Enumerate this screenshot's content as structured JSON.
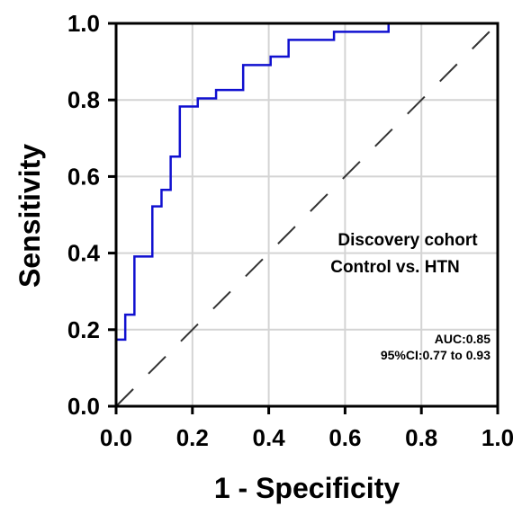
{
  "chart_data": {
    "type": "line",
    "title": "",
    "xlabel": "1 - Specificity",
    "ylabel": "Sensitivity",
    "xlim": [
      0,
      1
    ],
    "ylim": [
      0,
      1
    ],
    "x_ticks": [
      "0.0",
      "0.2",
      "0.4",
      "0.6",
      "0.8",
      "1.0"
    ],
    "y_ticks": [
      "0.0",
      "0.2",
      "0.4",
      "0.6",
      "0.8",
      "1.0"
    ],
    "grid": true,
    "series": [
      {
        "color": "#1010d0",
        "points": [
          [
            0.0,
            0.0
          ],
          [
            0.0,
            0.174
          ],
          [
            0.024,
            0.174
          ],
          [
            0.024,
            0.239
          ],
          [
            0.048,
            0.239
          ],
          [
            0.048,
            0.391
          ],
          [
            0.095,
            0.391
          ],
          [
            0.095,
            0.522
          ],
          [
            0.119,
            0.522
          ],
          [
            0.119,
            0.565
          ],
          [
            0.143,
            0.565
          ],
          [
            0.143,
            0.652
          ],
          [
            0.167,
            0.652
          ],
          [
            0.167,
            0.783
          ],
          [
            0.214,
            0.783
          ],
          [
            0.214,
            0.804
          ],
          [
            0.262,
            0.804
          ],
          [
            0.262,
            0.826
          ],
          [
            0.333,
            0.826
          ],
          [
            0.333,
            0.891
          ],
          [
            0.405,
            0.891
          ],
          [
            0.405,
            0.913
          ],
          [
            0.452,
            0.913
          ],
          [
            0.452,
            0.957
          ],
          [
            0.571,
            0.957
          ],
          [
            0.571,
            0.978
          ],
          [
            0.714,
            0.978
          ],
          [
            0.714,
            1.0
          ],
          [
            1.0,
            1.0
          ]
        ]
      },
      {
        "color": "#333333",
        "dashed": true,
        "points": [
          [
            0,
            0
          ],
          [
            1,
            1
          ]
        ]
      }
    ],
    "annotations": {
      "cohort": "Discovery cohort",
      "comparison": "Control vs. HTN",
      "auc": "AUC:0.85",
      "ci": "95%CI:0.77 to 0.93"
    }
  }
}
